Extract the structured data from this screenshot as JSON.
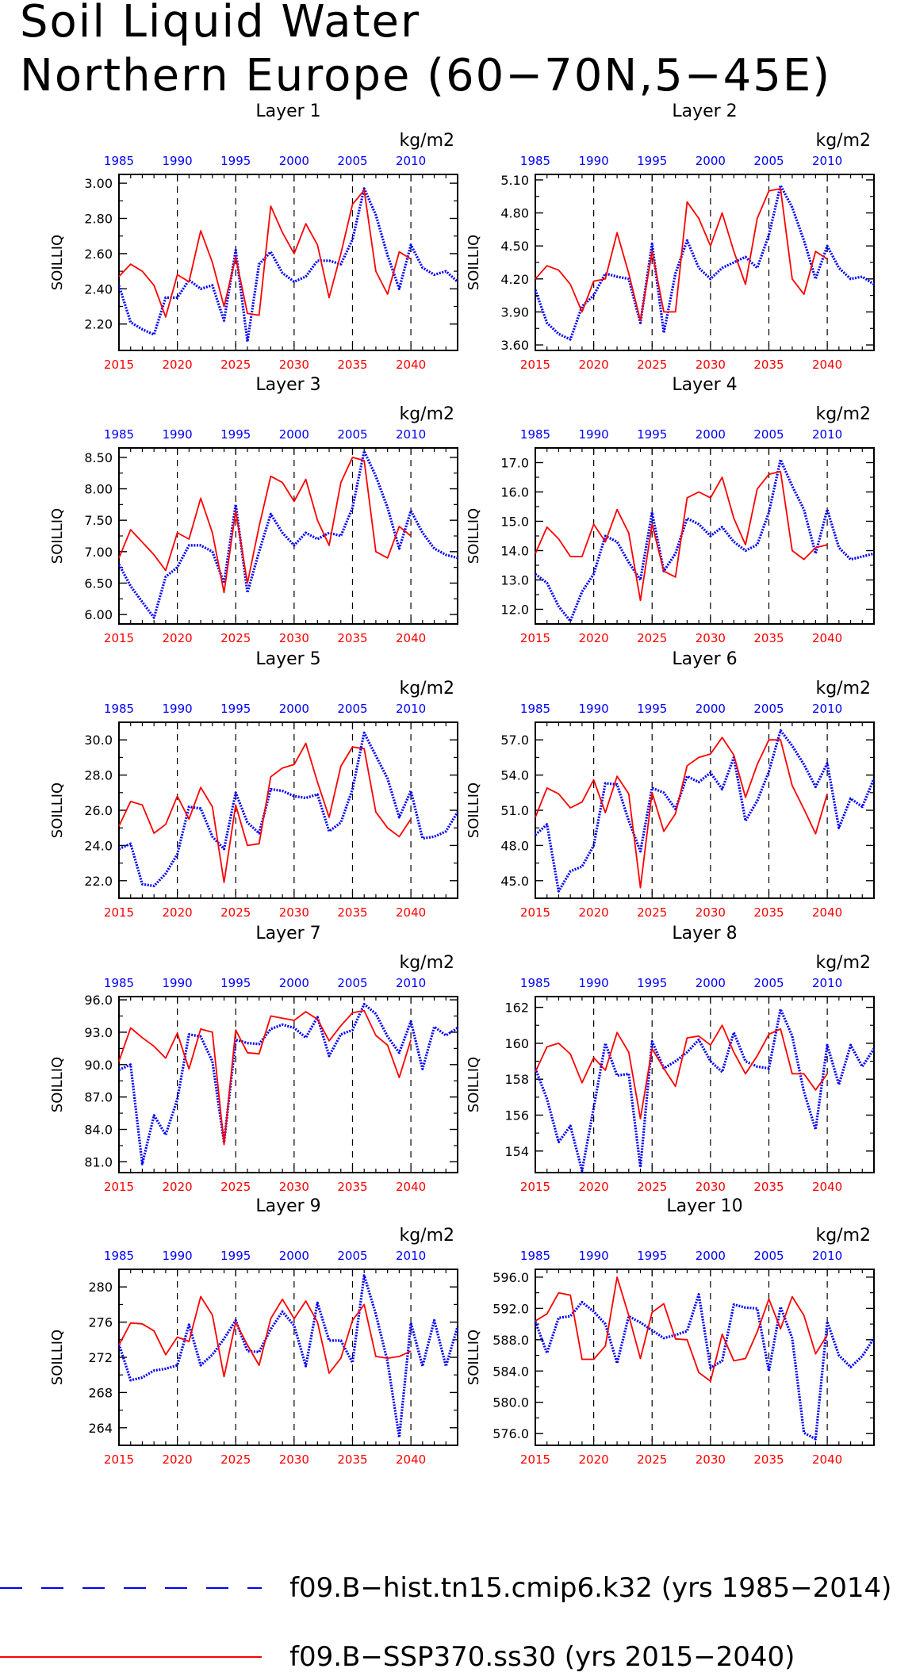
{
  "title": {
    "line1": "Soil Liquid Water",
    "line2": "Northern Europe (60−70N,5−45E)"
  },
  "common": {
    "ylabel": "SOILLIQ",
    "units": "kg/m2",
    "top_axis_ticks": [
      "1985",
      "1990",
      "1995",
      "2000",
      "2005",
      "2010"
    ],
    "bottom_axis_ticks": [
      "2015",
      "2020",
      "2025",
      "2030",
      "2035",
      "2040"
    ],
    "top_axis_range": [
      1985,
      2014
    ],
    "bottom_axis_range": [
      2015,
      2044
    ]
  },
  "legend": {
    "items": [
      {
        "label": "f09.B−hist.tn15.cmip6.k32 (yrs 1985−2014)",
        "color": "#0000ff",
        "style": "dashed"
      },
      {
        "label": "f09.B−SSP370.ss30 (yrs 2015−2040)",
        "color": "#ff0000",
        "style": "solid"
      }
    ]
  },
  "colors": {
    "historical": "#0000ff",
    "scenario": "#ff0000"
  },
  "chart_data": [
    {
      "type": "line",
      "title": "Layer 1",
      "ylim": [
        2.05,
        3.05
      ],
      "yticks": [
        2.2,
        2.4,
        2.6,
        2.8,
        3.0
      ],
      "ytick_labels": [
        "2.20",
        "2.40",
        "2.60",
        "2.80",
        "3.00"
      ],
      "series": [
        {
          "name": "f09.B−hist.tn15.cmip6.k32 (yrs 1985−2014)",
          "x_start": 1985,
          "values": [
            2.42,
            2.21,
            2.17,
            2.14,
            2.35,
            2.35,
            2.45,
            2.4,
            2.42,
            2.22,
            2.62,
            2.1,
            2.54,
            2.61,
            2.49,
            2.44,
            2.47,
            2.56,
            2.56,
            2.54,
            2.68,
            2.97,
            2.82,
            2.59,
            2.4,
            2.65,
            2.52,
            2.48,
            2.5,
            2.44
          ]
        },
        {
          "name": "f09.B−SSP370.ss30 (yrs 2015−2040)",
          "x_start": 2015,
          "values": [
            2.47,
            2.54,
            2.5,
            2.42,
            2.24,
            2.48,
            2.44,
            2.73,
            2.55,
            2.3,
            2.58,
            2.26,
            2.25,
            2.87,
            2.72,
            2.6,
            2.77,
            2.65,
            2.35,
            2.6,
            2.88,
            2.96,
            2.5,
            2.37,
            2.61,
            2.57
          ]
        }
      ]
    },
    {
      "type": "line",
      "title": "Layer 2",
      "ylim": [
        3.55,
        5.15
      ],
      "yticks": [
        3.6,
        3.9,
        4.2,
        4.5,
        4.8,
        5.1
      ],
      "ytick_labels": [
        "3.60",
        "3.90",
        "4.20",
        "4.50",
        "4.80",
        "5.10"
      ],
      "series": [
        {
          "name": "f09.B−hist.tn15.cmip6.k32 (yrs 1985−2014)",
          "x_start": 1985,
          "values": [
            4.1,
            3.8,
            3.7,
            3.65,
            3.95,
            4.05,
            4.25,
            4.22,
            4.2,
            3.8,
            4.52,
            3.71,
            4.25,
            4.55,
            4.3,
            4.2,
            4.3,
            4.35,
            4.4,
            4.3,
            4.6,
            5.05,
            4.85,
            4.55,
            4.2,
            4.5,
            4.3,
            4.2,
            4.22,
            4.15
          ]
        },
        {
          "name": "f09.B−SSP370.ss30 (yrs 2015−2040)",
          "x_start": 2015,
          "values": [
            4.2,
            4.32,
            4.28,
            4.15,
            3.9,
            4.18,
            4.2,
            4.62,
            4.25,
            3.82,
            4.45,
            3.9,
            3.9,
            4.9,
            4.75,
            4.5,
            4.8,
            4.45,
            4.15,
            4.75,
            5.0,
            5.02,
            4.2,
            4.06,
            4.45,
            4.38
          ]
        }
      ]
    },
    {
      "type": "line",
      "title": "Layer 3",
      "ylim": [
        5.85,
        8.65
      ],
      "yticks": [
        6.0,
        6.5,
        7.0,
        7.5,
        8.0,
        8.5
      ],
      "ytick_labels": [
        "6.00",
        "6.50",
        "7.00",
        "7.50",
        "8.00",
        "8.50"
      ],
      "series": [
        {
          "name": "f09.B−hist.tn15.cmip6.k32 (yrs 1985−2014)",
          "x_start": 1985,
          "values": [
            6.8,
            6.45,
            6.2,
            5.95,
            6.6,
            6.75,
            7.1,
            7.1,
            7.0,
            6.5,
            7.75,
            6.35,
            7.0,
            7.6,
            7.3,
            7.1,
            7.3,
            7.2,
            7.3,
            7.25,
            7.7,
            8.6,
            8.2,
            7.7,
            7.05,
            7.65,
            7.3,
            7.05,
            6.95,
            6.9
          ]
        },
        {
          "name": "f09.B−SSP370.ss30 (yrs 2015−2040)",
          "x_start": 2015,
          "values": [
            6.9,
            7.35,
            7.15,
            6.95,
            6.7,
            7.3,
            7.2,
            7.85,
            7.3,
            6.35,
            7.65,
            6.5,
            7.4,
            8.2,
            8.1,
            7.8,
            8.15,
            7.5,
            7.1,
            8.1,
            8.5,
            8.45,
            7.0,
            6.9,
            7.4,
            7.25
          ]
        }
      ]
    },
    {
      "type": "line",
      "title": "Layer 4",
      "ylim": [
        11.5,
        17.5
      ],
      "yticks": [
        12.0,
        13.0,
        14.0,
        15.0,
        16.0,
        17.0
      ],
      "ytick_labels": [
        "12.0",
        "13.0",
        "14.0",
        "15.0",
        "16.0",
        "17.0"
      ],
      "series": [
        {
          "name": "f09.B−hist.tn15.cmip6.k32 (yrs 1985−2014)",
          "x_start": 1985,
          "values": [
            13.2,
            12.9,
            12.1,
            11.6,
            12.6,
            13.2,
            14.5,
            14.3,
            13.6,
            13.0,
            15.3,
            13.3,
            13.9,
            15.1,
            14.9,
            14.5,
            14.8,
            14.3,
            14.0,
            14.2,
            15.3,
            17.1,
            16.2,
            15.4,
            13.9,
            15.4,
            14.1,
            13.7,
            13.8,
            13.9
          ]
        },
        {
          "name": "f09.B−SSP370.ss30 (yrs 2015−2040)",
          "x_start": 2015,
          "values": [
            13.9,
            14.8,
            14.4,
            13.8,
            13.8,
            14.9,
            14.3,
            15.4,
            14.6,
            12.3,
            14.9,
            13.3,
            13.1,
            15.8,
            16.0,
            15.8,
            16.5,
            15.1,
            14.2,
            16.1,
            16.6,
            16.7,
            14.0,
            13.7,
            14.1,
            14.2
          ]
        }
      ]
    },
    {
      "type": "line",
      "title": "Layer 5",
      "ylim": [
        21.0,
        31.0
      ],
      "yticks": [
        22.0,
        24.0,
        26.0,
        28.0,
        30.0
      ],
      "ytick_labels": [
        "22.0",
        "24.0",
        "26.0",
        "28.0",
        "30.0"
      ],
      "series": [
        {
          "name": "f09.B−hist.tn15.cmip6.k32 (yrs 1985−2014)",
          "x_start": 1985,
          "values": [
            23.8,
            24.1,
            21.8,
            21.7,
            22.4,
            23.5,
            26.2,
            26.1,
            24.5,
            23.8,
            27.0,
            25.3,
            24.7,
            27.2,
            27.1,
            26.8,
            26.7,
            26.9,
            24.8,
            25.3,
            27.2,
            30.4,
            29.1,
            27.8,
            25.6,
            27.1,
            24.4,
            24.5,
            24.8,
            25.9
          ]
        },
        {
          "name": "f09.B−SSP370.ss30 (yrs 2015−2040)",
          "x_start": 2015,
          "values": [
            25.1,
            26.5,
            26.3,
            24.7,
            25.2,
            26.8,
            25.5,
            27.3,
            26.2,
            21.9,
            26.3,
            24.0,
            24.1,
            27.9,
            28.4,
            28.6,
            29.8,
            27.6,
            25.6,
            28.5,
            29.6,
            29.5,
            25.9,
            25.0,
            24.5,
            25.5
          ]
        }
      ]
    },
    {
      "type": "line",
      "title": "Layer 6",
      "ylim": [
        43.5,
        58.5
      ],
      "yticks": [
        45.0,
        48.0,
        51.0,
        54.0,
        57.0
      ],
      "ytick_labels": [
        "45.0",
        "48.0",
        "51.0",
        "54.0",
        "57.0"
      ],
      "series": [
        {
          "name": "f09.B−hist.tn15.cmip6.k32 (yrs 1985−2014)",
          "x_start": 1985,
          "values": [
            48.9,
            49.8,
            44.1,
            45.8,
            46.2,
            48.0,
            53.3,
            53.2,
            50.1,
            47.5,
            52.9,
            52.5,
            51.1,
            53.9,
            53.4,
            54.2,
            52.8,
            55.5,
            50.1,
            51.8,
            54.3,
            57.8,
            56.5,
            54.9,
            53.0,
            55.0,
            49.5,
            52.0,
            51.3,
            53.7
          ]
        },
        {
          "name": "f09.B−SSP370.ss30 (yrs 2015−2040)",
          "x_start": 2015,
          "values": [
            50.4,
            52.9,
            52.4,
            51.2,
            51.7,
            53.6,
            50.8,
            53.9,
            52.4,
            44.4,
            52.5,
            49.2,
            50.7,
            54.8,
            55.5,
            55.8,
            57.2,
            55.7,
            52.1,
            54.9,
            57.0,
            57.0,
            53.1,
            51.1,
            49.0,
            52.4
          ]
        }
      ]
    },
    {
      "type": "line",
      "title": "Layer 7",
      "ylim": [
        80.0,
        96.3
      ],
      "yticks": [
        81.0,
        84.0,
        87.0,
        90.0,
        93.0,
        96.0
      ],
      "ytick_labels": [
        "81.0",
        "84.0",
        "87.0",
        "90.0",
        "93.0",
        "96.0"
      ],
      "series": [
        {
          "name": "f09.B−hist.tn15.cmip6.k32 (yrs 1985−2014)",
          "x_start": 1985,
          "values": [
            89.5,
            90.0,
            80.8,
            85.3,
            83.5,
            86.8,
            92.8,
            92.6,
            90.3,
            82.8,
            92.3,
            92.0,
            91.9,
            93.3,
            93.7,
            93.4,
            92.5,
            94.4,
            90.8,
            92.8,
            93.2,
            95.6,
            94.7,
            92.6,
            91.1,
            94.0,
            89.6,
            93.5,
            92.7,
            93.4
          ]
        },
        {
          "name": "f09.B−SSP370.ss30 (yrs 2015−2040)",
          "x_start": 2015,
          "values": [
            90.3,
            93.4,
            92.5,
            91.7,
            90.6,
            92.9,
            89.6,
            93.3,
            93.0,
            82.6,
            93.2,
            91.1,
            91.0,
            94.5,
            94.3,
            94.1,
            94.9,
            94.2,
            92.2,
            93.6,
            94.8,
            95.0,
            92.7,
            91.8,
            88.8,
            92.3
          ]
        }
      ]
    },
    {
      "type": "line",
      "title": "Layer 8",
      "ylim": [
        152.8,
        162.6
      ],
      "yticks": [
        154,
        156,
        158,
        160,
        162
      ],
      "ytick_labels": [
        "154",
        "156",
        "158",
        "160",
        "162"
      ],
      "series": [
        {
          "name": "f09.B−hist.tn15.cmip6.k32 (yrs 1985−2014)",
          "x_start": 1985,
          "values": [
            158.6,
            156.9,
            154.5,
            155.4,
            152.9,
            156.4,
            160.0,
            158.2,
            158.3,
            153.1,
            160.1,
            158.6,
            159.0,
            159.5,
            160.2,
            159.0,
            158.4,
            160.6,
            159.0,
            158.7,
            158.6,
            161.9,
            160.4,
            157.3,
            155.2,
            159.9,
            157.7,
            159.9,
            158.7,
            159.7
          ]
        },
        {
          "name": "f09.B−SSP370.ss30 (yrs 2015−2040)",
          "x_start": 2015,
          "values": [
            158.4,
            159.8,
            160.0,
            159.4,
            157.8,
            159.2,
            158.5,
            160.6,
            159.5,
            155.8,
            159.7,
            158.6,
            157.6,
            160.3,
            160.4,
            159.9,
            161.0,
            159.5,
            158.3,
            159.3,
            160.5,
            160.8,
            158.3,
            158.3,
            157.4,
            158.3
          ]
        }
      ]
    },
    {
      "type": "line",
      "title": "Layer 9",
      "ylim": [
        262.0,
        282.0
      ],
      "yticks": [
        264,
        268,
        272,
        276,
        280
      ],
      "ytick_labels": [
        "264",
        "268",
        "272",
        "276",
        "280"
      ],
      "series": [
        {
          "name": "f09.B−hist.tn15.cmip6.k32 (yrs 1985−2014)",
          "x_start": 1985,
          "values": [
            273.5,
            269.4,
            269.7,
            270.5,
            270.7,
            271.1,
            275.7,
            271.1,
            272.3,
            274.1,
            276.2,
            272.7,
            272.6,
            275.2,
            277.2,
            275.6,
            271.0,
            278.2,
            273.9,
            273.9,
            271.4,
            281.3,
            276.9,
            271.5,
            262.9,
            275.9,
            271.0,
            276.2,
            271.0,
            275.5
          ]
        },
        {
          "name": "f09.B−SSP370.ss30 (yrs 2015−2040)",
          "x_start": 2015,
          "values": [
            273.4,
            275.9,
            275.8,
            275.0,
            272.3,
            274.3,
            273.8,
            278.9,
            276.8,
            269.8,
            276.0,
            273.4,
            271.1,
            276.4,
            278.6,
            276.4,
            278.4,
            276.0,
            270.2,
            271.9,
            276.2,
            278.0,
            272.1,
            271.9,
            272.1,
            272.7
          ]
        }
      ]
    },
    {
      "type": "line",
      "title": "Layer 10",
      "ylim": [
        574.5,
        597.0
      ],
      "yticks": [
        576.0,
        580.0,
        584.0,
        588.0,
        592.0,
        596.0
      ],
      "ytick_labels": [
        "576.0",
        "580.0",
        "584.0",
        "588.0",
        "592.0",
        "596.0"
      ],
      "series": [
        {
          "name": "f09.B−hist.tn15.cmip6.k32 (yrs 1985−2014)",
          "x_start": 1985,
          "values": [
            590.3,
            586.3,
            590.8,
            591.0,
            592.8,
            591.6,
            590.0,
            585.0,
            591.0,
            590.2,
            589.2,
            588.2,
            588.6,
            589.1,
            593.8,
            584.4,
            585.3,
            592.5,
            592.1,
            592.0,
            584.0,
            592.2,
            588.2,
            576.1,
            575.3,
            590.3,
            586.0,
            584.5,
            585.9,
            588.2
          ]
        },
        {
          "name": "f09.B−SSP370.ss30 (yrs 2015−2040)",
          "x_start": 2015,
          "values": [
            590.4,
            591.3,
            594.0,
            593.7,
            585.5,
            585.5,
            587.2,
            596.0,
            591.1,
            585.6,
            591.5,
            592.6,
            588.1,
            588.0,
            583.8,
            582.7,
            588.7,
            585.3,
            585.6,
            589.0,
            593.2,
            589.4,
            593.5,
            591.1,
            586.2,
            588.6
          ]
        }
      ]
    }
  ]
}
